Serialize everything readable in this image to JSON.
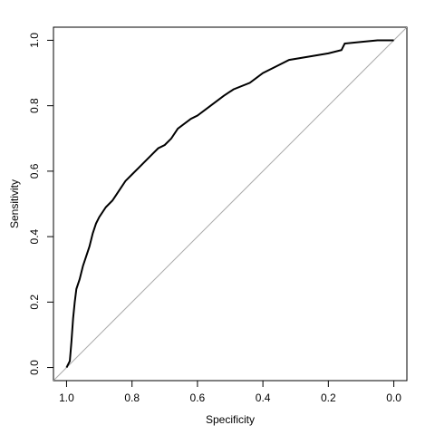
{
  "chart_data": {
    "type": "line",
    "xlabel": "Specificity",
    "ylabel": "Sensitivity",
    "xlim": [
      1.04,
      -0.04
    ],
    "ylim": [
      -0.04,
      1.04
    ],
    "xticks": [
      {
        "value": 1,
        "label": "1.0"
      },
      0.8,
      0.6,
      0.4,
      0.2,
      {
        "value": 0,
        "label": "0.0"
      }
    ],
    "yticks": [
      {
        "value": 0,
        "label": "0.0"
      },
      0.2,
      0.4,
      0.6,
      0.8,
      {
        "value": 1,
        "label": "1.0"
      }
    ],
    "color": "#000000",
    "reference_color": "#aaaaaa",
    "x": [
      1.0,
      0.99,
      0.985,
      0.98,
      0.975,
      0.97,
      0.96,
      0.95,
      0.94,
      0.93,
      0.92,
      0.91,
      0.9,
      0.88,
      0.86,
      0.84,
      0.82,
      0.8,
      0.78,
      0.76,
      0.74,
      0.72,
      0.7,
      0.68,
      0.66,
      0.62,
      0.6,
      0.56,
      0.52,
      0.49,
      0.44,
      0.4,
      0.36,
      0.32,
      0.26,
      0.2,
      0.16,
      0.15,
      0.1,
      0.05,
      0.0
    ],
    "values": [
      0.0,
      0.02,
      0.08,
      0.15,
      0.2,
      0.24,
      0.27,
      0.31,
      0.34,
      0.37,
      0.41,
      0.44,
      0.46,
      0.49,
      0.51,
      0.54,
      0.57,
      0.59,
      0.61,
      0.63,
      0.65,
      0.67,
      0.68,
      0.7,
      0.73,
      0.76,
      0.77,
      0.8,
      0.83,
      0.85,
      0.87,
      0.9,
      0.92,
      0.94,
      0.95,
      0.96,
      0.97,
      0.99,
      0.995,
      1.0,
      1.0
    ]
  }
}
